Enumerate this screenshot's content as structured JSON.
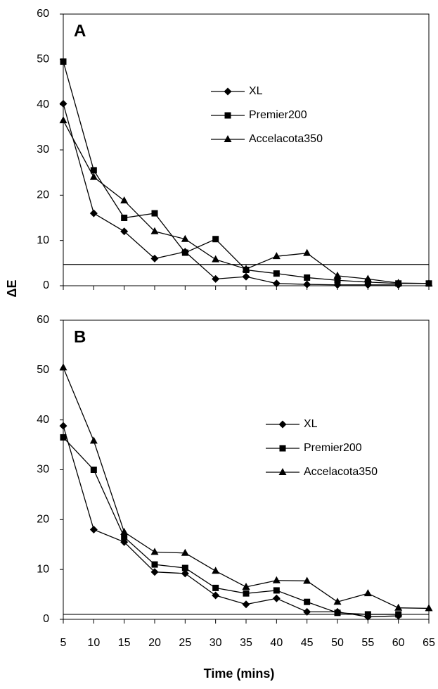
{
  "chart_data": [
    {
      "type": "line",
      "panel_label": "A",
      "ylabel": "ΔE",
      "x": [
        5,
        10,
        15,
        20,
        25,
        30,
        35,
        40,
        45,
        50,
        55,
        60,
        65
      ],
      "series": [
        {
          "name": "XL",
          "color": "#000000",
          "marker": "diamond",
          "values": [
            40.2,
            16,
            12,
            6,
            7.5,
            1.5,
            2,
            0.5,
            0.3,
            0.2,
            0.2,
            0.2,
            null
          ]
        },
        {
          "name": "Premier200",
          "color": "#000000",
          "marker": "square",
          "values": [
            49.5,
            25.5,
            15,
            16,
            7.3,
            10.3,
            3.5,
            2.7,
            1.8,
            1.2,
            0.8,
            0.5,
            0.5
          ]
        },
        {
          "name": "Accelacota350",
          "color": "#000000",
          "marker": "triangle",
          "values": [
            36.5,
            24,
            18.8,
            12,
            10.3,
            5.8,
            3.7,
            6.5,
            7.2,
            2.2,
            1.5,
            0.6,
            0.5
          ]
        }
      ],
      "reference_line": 4.7,
      "xlim": [
        5,
        65
      ],
      "xticks": [
        5,
        10,
        15,
        20,
        25,
        30,
        35,
        40,
        45,
        50,
        55,
        60,
        65
      ],
      "show_xtick_labels": false,
      "ylim": [
        0,
        60
      ],
      "yticks": [
        0,
        10,
        20,
        30,
        40,
        50,
        60
      ],
      "legend": "upper center"
    },
    {
      "type": "line",
      "panel_label": "B",
      "xlabel": "Time (mins)",
      "x": [
        5,
        10,
        15,
        20,
        25,
        30,
        35,
        40,
        45,
        50,
        55,
        60,
        65
      ],
      "series": [
        {
          "name": "XL",
          "color": "#000000",
          "marker": "diamond",
          "values": [
            38.8,
            18,
            15.5,
            9.5,
            9.2,
            4.8,
            3,
            4.2,
            1.5,
            1.5,
            0.5,
            0.7,
            null
          ]
        },
        {
          "name": "Premier200",
          "color": "#000000",
          "marker": "square",
          "values": [
            36.5,
            30,
            16.5,
            11,
            10.3,
            6.3,
            5.2,
            5.8,
            3.5,
            1.3,
            1,
            1,
            null
          ]
        },
        {
          "name": "Accelacota350",
          "color": "#000000",
          "marker": "triangle",
          "values": [
            50.5,
            35.8,
            17.5,
            13.5,
            13.3,
            9.7,
            6.5,
            7.8,
            7.7,
            3.5,
            5.2,
            2.3,
            2.2
          ]
        }
      ],
      "reference_line": 1,
      "xlim": [
        5,
        65
      ],
      "xticks": [
        5,
        10,
        15,
        20,
        25,
        30,
        35,
        40,
        45,
        50,
        55,
        60,
        65
      ],
      "show_xtick_labels": true,
      "ylim": [
        0,
        60
      ],
      "yticks": [
        0,
        10,
        20,
        30,
        40,
        50,
        60
      ],
      "legend": "center right"
    }
  ]
}
